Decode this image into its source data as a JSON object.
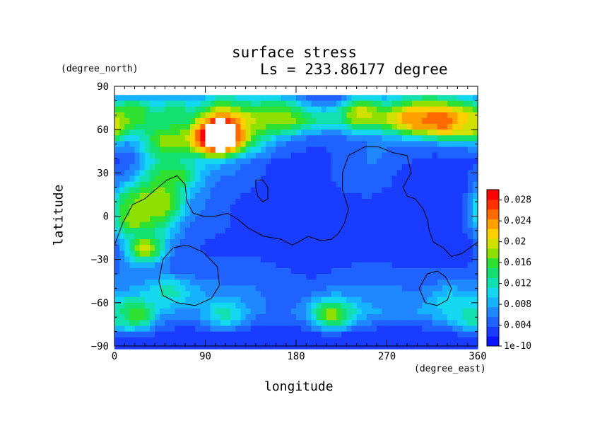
{
  "chart_data": {
    "type": "heatmap",
    "title": "surface stress",
    "subtitle": "Ls = 233.86177 degree",
    "xlabel": "longitude",
    "ylabel": "latitude",
    "x_unit": "(degree_east)",
    "y_unit": "(degree_north)",
    "xlim": [
      0,
      360
    ],
    "ylim": [
      -90,
      90
    ],
    "x_ticks": [
      "0",
      "90",
      "180",
      "270",
      "360"
    ],
    "y_ticks": [
      "90",
      "60",
      "30",
      "0",
      "−30",
      "−60",
      "−90"
    ],
    "colorbar": {
      "range": [
        0,
        0.03
      ],
      "tick_labels": [
        "1e-10",
        "0.004",
        "0.008",
        "0.012",
        "0.016",
        "0.02",
        "0.024",
        "0.028"
      ],
      "colors": [
        "#0a14ff",
        "#1a3cff",
        "#1f62ff",
        "#2088ff",
        "#16b4ff",
        "#14d8f0",
        "#12e0b0",
        "#14e070",
        "#2ee030",
        "#8ee000",
        "#d0e000",
        "#ffd000",
        "#ffa000",
        "#ff6a00",
        "#ff3000",
        "#ff0000"
      ]
    },
    "grid_lon_step": 30,
    "grid_lat_step": 15,
    "latitudes": [
      82.5,
      67.5,
      52.5,
      37.5,
      22.5,
      7.5,
      -7.5,
      -22.5,
      -37.5,
      -52.5,
      -67.5,
      -82.5
    ],
    "longitudes": [
      15,
      45,
      75,
      105,
      135,
      165,
      195,
      225,
      255,
      285,
      315,
      345
    ],
    "values": [
      [
        0.005,
        0.005,
        0.006,
        0.012,
        0.01,
        0.008,
        0.004,
        0.003,
        0.006,
        0.01,
        0.012,
        0.01
      ],
      [
        0.016,
        0.012,
        0.014,
        0.026,
        0.02,
        0.018,
        0.014,
        0.012,
        0.016,
        0.022,
        0.026,
        0.022
      ],
      [
        0.006,
        0.01,
        0.02,
        0.031,
        0.016,
        0.006,
        0.004,
        0.004,
        0.006,
        0.006,
        0.005,
        0.005
      ],
      [
        0.004,
        0.012,
        0.01,
        0.008,
        0.005,
        0.003,
        0.003,
        0.004,
        0.006,
        0.004,
        0.003,
        0.003
      ],
      [
        0.008,
        0.016,
        0.008,
        0.005,
        0.004,
        0.003,
        0.003,
        0.004,
        0.005,
        0.003,
        0.003,
        0.003
      ],
      [
        0.012,
        0.02,
        0.007,
        0.004,
        0.003,
        0.003,
        0.003,
        0.003,
        0.003,
        0.002,
        0.002,
        0.002
      ],
      [
        0.01,
        0.012,
        0.005,
        0.004,
        0.003,
        0.003,
        0.003,
        0.003,
        0.002,
        0.002,
        0.002,
        0.003
      ],
      [
        0.003,
        0.004,
        0.004,
        0.003,
        0.003,
        0.002,
        0.002,
        0.002,
        0.002,
        0.002,
        0.002,
        0.002
      ],
      [
        0.006,
        0.005,
        0.004,
        0.005,
        0.005,
        0.004,
        0.003,
        0.004,
        0.005,
        0.004,
        0.004,
        0.004
      ],
      [
        0.007,
        0.009,
        0.008,
        0.006,
        0.006,
        0.005,
        0.005,
        0.006,
        0.006,
        0.006,
        0.005,
        0.006
      ],
      [
        0.01,
        0.006,
        0.006,
        0.008,
        0.006,
        0.005,
        0.006,
        0.01,
        0.008,
        0.007,
        0.008,
        0.01
      ],
      [
        0.002,
        0.003,
        0.002,
        0.002,
        0.002,
        0.002,
        0.002,
        0.002,
        0.002,
        0.002,
        0.002,
        0.002
      ]
    ],
    "hotspots": [
      {
        "lon": 20,
        "lat": 72,
        "value": 0.016
      },
      {
        "lon": 60,
        "lat": 72,
        "value": 0.014
      },
      {
        "lon": 102,
        "lat": 55,
        "value": 0.034
      },
      {
        "lon": 165,
        "lat": 68,
        "value": 0.018
      },
      {
        "lon": 245,
        "lat": 72,
        "value": 0.02
      },
      {
        "lon": 300,
        "lat": 67,
        "value": 0.024
      },
      {
        "lon": 330,
        "lat": 64,
        "value": 0.026
      },
      {
        "lon": 355,
        "lat": 62,
        "value": 0.02
      },
      {
        "lon": 50,
        "lat": 52,
        "value": 0.018
      },
      {
        "lon": 60,
        "lat": 28,
        "value": 0.016
      },
      {
        "lon": 20,
        "lat": 10,
        "value": 0.016
      },
      {
        "lon": 40,
        "lat": 10,
        "value": 0.018
      },
      {
        "lon": 30,
        "lat": -22,
        "value": 0.02
      },
      {
        "lon": 20,
        "lat": -2,
        "value": 0.018
      },
      {
        "lon": 55,
        "lat": -53,
        "value": 0.012
      },
      {
        "lon": 20,
        "lat": -68,
        "value": 0.018
      },
      {
        "lon": 110,
        "lat": -68,
        "value": 0.012
      },
      {
        "lon": 215,
        "lat": -68,
        "value": 0.018
      },
      {
        "lon": 330,
        "lat": -58,
        "value": 0.01
      },
      {
        "lon": 355,
        "lat": -70,
        "value": 0.012
      }
    ],
    "saturated_region": {
      "lon": 105,
      "lat": 56,
      "lon_halfwidth": 17,
      "lat_halfwidth": 11
    },
    "topography_contours": [
      [
        [
          0,
          -20
        ],
        [
          8,
          -5
        ],
        [
          18,
          8
        ],
        [
          30,
          12
        ],
        [
          40,
          18
        ],
        [
          52,
          25
        ],
        [
          62,
          28
        ],
        [
          70,
          22
        ],
        [
          72,
          10
        ],
        [
          78,
          2
        ],
        [
          88,
          0
        ],
        [
          100,
          0
        ],
        [
          112,
          2
        ],
        [
          122,
          -2
        ],
        [
          132,
          -8
        ],
        [
          148,
          -14
        ],
        [
          165,
          -16
        ],
        [
          176,
          -20
        ],
        [
          182,
          -18
        ],
        [
          192,
          -14
        ],
        [
          205,
          -17
        ],
        [
          215,
          -16
        ],
        [
          222,
          -12
        ],
        [
          228,
          -5
        ],
        [
          232,
          5
        ],
        [
          226,
          18
        ],
        [
          226,
          30
        ],
        [
          232,
          42
        ],
        [
          248,
          48
        ],
        [
          262,
          48
        ],
        [
          276,
          44
        ],
        [
          290,
          42
        ],
        [
          294,
          30
        ],
        [
          286,
          20
        ],
        [
          290,
          14
        ],
        [
          298,
          12
        ],
        [
          306,
          5
        ],
        [
          310,
          -2
        ],
        [
          312,
          -10
        ],
        [
          316,
          -18
        ],
        [
          326,
          -22
        ],
        [
          334,
          -28
        ],
        [
          344,
          -26
        ],
        [
          356,
          -20
        ],
        [
          360,
          -18
        ]
      ],
      [
        [
          140,
          25
        ],
        [
          147,
          25
        ],
        [
          152,
          20
        ],
        [
          152,
          12
        ],
        [
          147,
          10
        ],
        [
          142,
          14
        ],
        [
          140,
          20
        ],
        [
          140,
          25
        ]
      ],
      [
        [
          44,
          -45
        ],
        [
          48,
          -30
        ],
        [
          58,
          -22
        ],
        [
          72,
          -20
        ],
        [
          88,
          -25
        ],
        [
          102,
          -35
        ],
        [
          104,
          -48
        ],
        [
          96,
          -57
        ],
        [
          80,
          -62
        ],
        [
          62,
          -60
        ],
        [
          48,
          -55
        ],
        [
          44,
          -45
        ]
      ],
      [
        [
          302,
          -50
        ],
        [
          310,
          -40
        ],
        [
          320,
          -38
        ],
        [
          328,
          -42
        ],
        [
          334,
          -50
        ],
        [
          330,
          -58
        ],
        [
          320,
          -62
        ],
        [
          308,
          -60
        ],
        [
          302,
          -50
        ]
      ]
    ]
  }
}
